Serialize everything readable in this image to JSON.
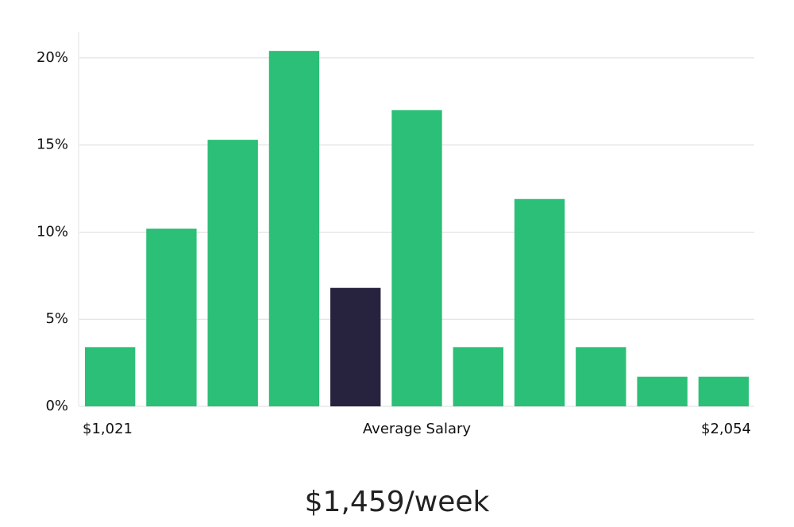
{
  "chart_data": {
    "type": "bar",
    "categories": [
      null,
      null,
      null,
      null,
      null,
      null,
      null,
      null,
      null,
      null,
      null
    ],
    "values": [
      3.4,
      10.2,
      15.3,
      20.4,
      6.8,
      17.0,
      3.4,
      11.9,
      3.4,
      1.7,
      1.7
    ],
    "colors": [
      "#2bbf77",
      "#2bbf77",
      "#2bbf77",
      "#2bbf77",
      "#27233f",
      "#2bbf77",
      "#2bbf77",
      "#2bbf77",
      "#2bbf77",
      "#2bbf77",
      "#2bbf77"
    ],
    "ylim": [
      0,
      21.5
    ],
    "yticks": [
      {
        "value": 0,
        "label": "0%"
      },
      {
        "value": 5,
        "label": "5%"
      },
      {
        "value": 10,
        "label": "10%"
      },
      {
        "value": 15,
        "label": "15%"
      },
      {
        "value": 20,
        "label": "20%"
      }
    ],
    "grid": true,
    "x_label": "Average Salary",
    "x_range_labels": [
      "$1,021",
      "$2,054"
    ],
    "headline": "$1,459/week"
  }
}
